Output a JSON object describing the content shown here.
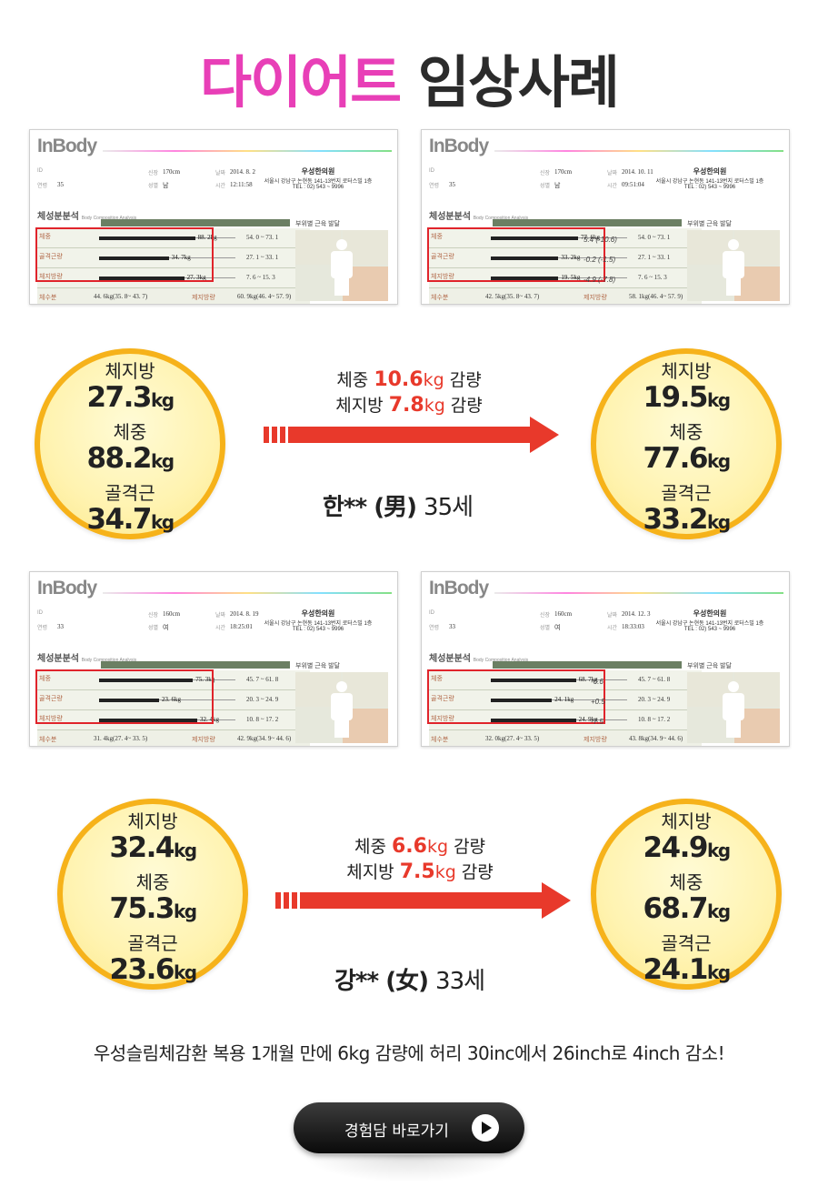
{
  "title": {
    "pink": "다이어트",
    "dark": "임상사례"
  },
  "reports": [
    {
      "logo": "InBody",
      "height": "170cm",
      "sex": "남",
      "date": "2014. 8. 2",
      "time": "12:11:58",
      "age": "35",
      "weight": "88. 2kg",
      "muscle": "34. 7kg",
      "fat": "27. 3kg",
      "weight_range": "54. 0 ~ 73. 1",
      "muscle_range": "27. 1 ~ 33. 1",
      "fat_range": "7. 6 ~ 15. 3",
      "water": "44. 6kg(35. 8~ 43. 7)",
      "ffm": "60. 9kg(46. 4~ 57. 9)",
      "notes": []
    },
    {
      "logo": "InBody",
      "height": "170cm",
      "sex": "남",
      "date": "2014. 10. 11",
      "time": "09:51:04",
      "age": "35",
      "weight": "77. 6kg",
      "muscle": "33. 2kg",
      "fat": "19. 5kg",
      "weight_range": "54. 0 ~ 73. 1",
      "muscle_range": "27. 1 ~ 33. 1",
      "fat_range": "7. 6 ~ 15. 3",
      "water": "42. 5kg(35. 8~ 43. 7)",
      "ffm": "58. 1kg(46. 4~ 57. 9)",
      "notes": [
        "5.4 (-10.6)",
        "-0.2 (-1.5)",
        "-4.9 (-7.8)"
      ]
    },
    {
      "logo": "InBody",
      "height": "160cm",
      "sex": "여",
      "date": "2014. 8. 19",
      "time": "18:25:01",
      "age": "33",
      "weight": "75. 3kg",
      "muscle": "23. 6kg",
      "fat": "32. 4kg",
      "weight_range": "45. 7 ~ 61. 8",
      "muscle_range": "20. 3 ~ 24. 9",
      "fat_range": "10. 8 ~ 17. 2",
      "water": "31. 4kg(27. 4~ 33. 5)",
      "ffm": "42. 9kg(34. 9~ 44. 6)",
      "notes": []
    },
    {
      "logo": "InBody",
      "height": "160cm",
      "sex": "여",
      "date": "2014. 12. 3",
      "time": "18:33:03",
      "age": "33",
      "weight": "68. 7kg",
      "muscle": "24. 1kg",
      "fat": "24. 9kg",
      "weight_range": "45. 7 ~ 61. 8",
      "muscle_range": "20. 3 ~ 24. 9",
      "fat_range": "10. 8 ~ 17. 2",
      "water": "32. 0kg(27. 4~ 33. 5)",
      "ffm": "43. 8kg(34. 9~ 44. 6)",
      "notes": [
        "-6.6",
        "+0.5",
        "-7.5"
      ]
    }
  ],
  "report_labels": {
    "id": "ID",
    "age": "연령",
    "height": "신장",
    "sex": "성별",
    "date": "날짜",
    "time": "시간",
    "clinic": "우성한의원",
    "clinic_addr": "서울시 강남구 논현동 141-13번지 로터스빌 1층",
    "clinic_tel": "TEL : 02) 543 ~ 9996",
    "section": "체성분분석",
    "section_en": "Body Composition Analysis",
    "segment": "부위별 근육 발달",
    "row_weight": "체중",
    "row_muscle": "골격근량",
    "row_fat": "체지방량",
    "water": "체수분",
    "ffm": "제지방량"
  },
  "cases": [
    {
      "before": {
        "fat_label": "체지방",
        "fat": "27.3",
        "weight_label": "체중",
        "weight": "88.2",
        "muscle_label": "골격근",
        "muscle": "34.7",
        "unit": "kg"
      },
      "after": {
        "fat_label": "체지방",
        "fat": "19.5",
        "weight_label": "체중",
        "weight": "77.6",
        "muscle_label": "골격근",
        "muscle": "33.2",
        "unit": "kg"
      },
      "change_weight": {
        "pre": "체중 ",
        "value": "10.6",
        "unit": "kg",
        "post": " 감량"
      },
      "change_fat": {
        "pre": "체지방 ",
        "value": "7.8",
        "unit": "kg",
        "post": " 감량"
      },
      "person": {
        "name": "한**",
        "sex": "(男)",
        "age": "35세"
      }
    },
    {
      "before": {
        "fat_label": "체지방",
        "fat": "32.4",
        "weight_label": "체중",
        "weight": "75.3",
        "muscle_label": "골격근",
        "muscle": "23.6",
        "unit": "kg"
      },
      "after": {
        "fat_label": "체지방",
        "fat": "24.9",
        "weight_label": "체중",
        "weight": "68.7",
        "muscle_label": "골격근",
        "muscle": "24.1",
        "unit": "kg"
      },
      "change_weight": {
        "pre": "체중 ",
        "value": "6.6",
        "unit": "kg",
        "post": " 감량"
      },
      "change_fat": {
        "pre": "체지방 ",
        "value": "7.5",
        "unit": "kg",
        "post": " 감량"
      },
      "person": {
        "name": "강**",
        "sex": "(女)",
        "age": "33세"
      }
    }
  ],
  "summary": "우성슬림체감환 복용 1개월 만에 6kg 감량에 허리 30inc에서 26inch로 4inch 감소!",
  "cta": {
    "label": "경험담 바로가기",
    "icon": "play-icon"
  },
  "colors": {
    "pink": "#e83fb7",
    "red": "#e8392b",
    "circle_border": "#f6b21a",
    "circle_fill": "#fff3b0"
  }
}
